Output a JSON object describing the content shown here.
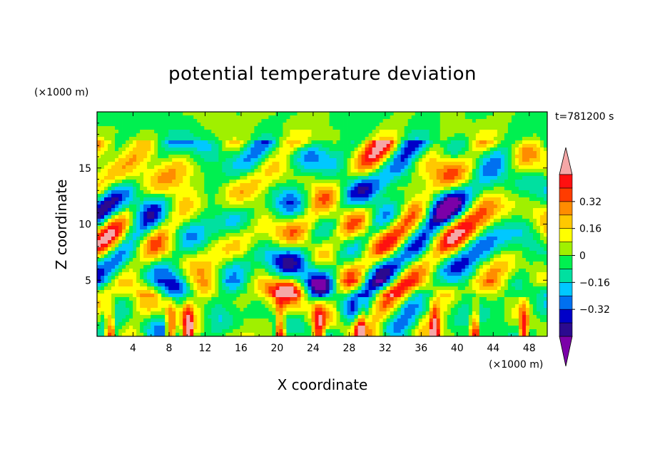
{
  "chart_data": {
    "type": "heatmap",
    "title": "potential temperature deviation",
    "xlabel": "X coordinate",
    "ylabel": "Z coordinate",
    "x_unit": "(×1000 m)",
    "y_unit": "(×1000 m)",
    "time_label": "t=781200 s",
    "xlim": [
      0,
      50
    ],
    "ylim": [
      0,
      20
    ],
    "x_ticks": [
      4,
      8,
      12,
      16,
      20,
      24,
      28,
      32,
      36,
      40,
      44,
      48
    ],
    "y_ticks": [
      5,
      10,
      15
    ],
    "colorbar": {
      "levels": [
        -0.48,
        -0.4,
        -0.32,
        -0.24,
        -0.16,
        -0.08,
        0,
        0.08,
        0.16,
        0.24,
        0.32,
        0.4,
        0.48
      ],
      "labels": [
        "−0.32",
        "−0.16",
        "0",
        "0.16",
        "0.32"
      ],
      "label_values": [
        -0.32,
        -0.16,
        0,
        0.16,
        0.32
      ],
      "colors": [
        "#7b00a8",
        "#2b0a8f",
        "#0000c8",
        "#0070f0",
        "#00c8ff",
        "#00e0a0",
        "#00f050",
        "#a0f000",
        "#ffff00",
        "#ffc800",
        "#ff8c00",
        "#ff3c00",
        "#ff1010",
        "#f5a7a7"
      ],
      "extend": "both"
    }
  }
}
